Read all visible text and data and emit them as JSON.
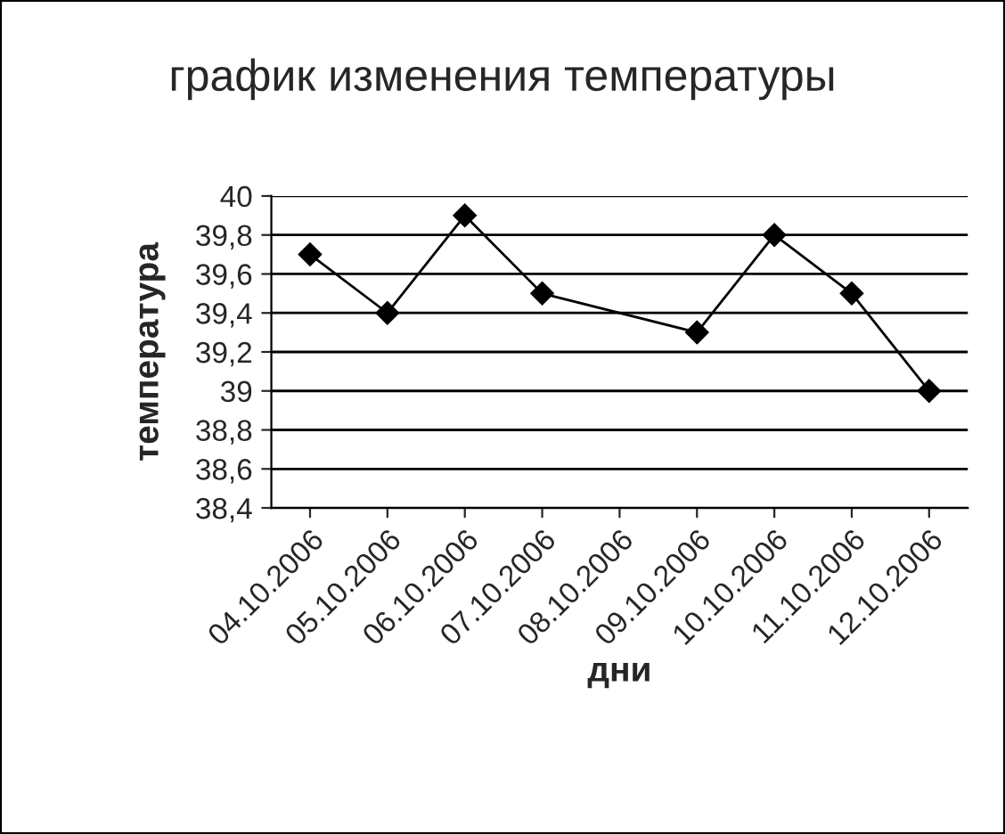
{
  "chart_data": {
    "type": "line",
    "title": "график изменения температуры",
    "xlabel": "дни",
    "ylabel": "температура",
    "categories": [
      "04.10.2006",
      "05.10.2006",
      "06.10.2006",
      "07.10.2006",
      "08.10.2006",
      "09.10.2006",
      "10.10.2006",
      "11.10.2006",
      "12.10.2006"
    ],
    "series": [
      {
        "color": "#000000",
        "values": [
          39.7,
          39.4,
          39.9,
          39.5,
          null,
          39.3,
          39.8,
          39.5,
          39.0
        ]
      }
    ],
    "ylim": [
      38.4,
      40
    ],
    "yticks": [
      {
        "value": 38.4,
        "label": "38,4"
      },
      {
        "value": 38.6,
        "label": "38,6"
      },
      {
        "value": 38.8,
        "label": "38,8"
      },
      {
        "value": 39,
        "label": "39"
      },
      {
        "value": 39.2,
        "label": "39,2"
      },
      {
        "value": 39.4,
        "label": "39,4"
      },
      {
        "value": 39.6,
        "label": "39,6"
      },
      {
        "value": 39.8,
        "label": "39,8"
      },
      {
        "value": 40,
        "label": "40"
      }
    ],
    "grid": "y",
    "legend": false,
    "marker": "diamond",
    "line_style": "solid"
  }
}
